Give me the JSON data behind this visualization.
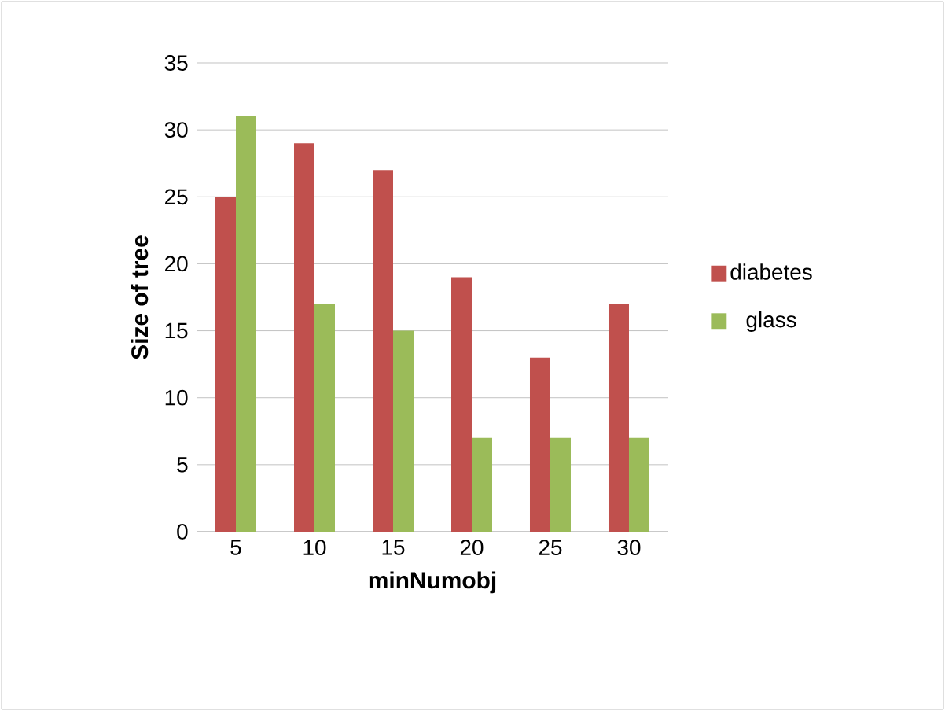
{
  "chart_data": {
    "type": "bar",
    "xlabel": "minNumobj",
    "ylabel": "Size of tree",
    "categories": [
      "5",
      "10",
      "15",
      "20",
      "25",
      "30"
    ],
    "series": [
      {
        "name": "diabetes",
        "color": "#c0504d",
        "values": [
          25,
          29,
          27,
          19,
          13,
          17
        ]
      },
      {
        "name": "glass",
        "color": "#9bbb59",
        "values": [
          31,
          17,
          15,
          7,
          7,
          7
        ]
      }
    ],
    "ylim": [
      0,
      35
    ],
    "yticks": [
      0,
      5,
      10,
      15,
      20,
      25,
      30,
      35
    ],
    "grid": "y",
    "legend": "right"
  }
}
